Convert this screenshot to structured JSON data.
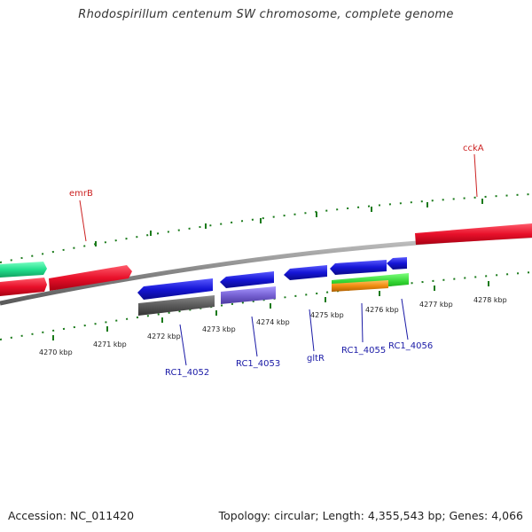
{
  "map": {
    "title": "Rhodospirillum centenum SW chromosome, complete genome",
    "accession_label": "Accession: NC_011420",
    "summary_label": "Topology: circular; Length: 4,355,543 bp; Genes: 4,066"
  },
  "scale": {
    "unit": "kbp",
    "labels": [
      "4270 kbp",
      "4271 kbp",
      "4272 kbp",
      "4273 kbp",
      "4274 kbp",
      "4275 kbp",
      "4276 kbp",
      "4277 kbp",
      "4278 kbp"
    ]
  },
  "genes": {
    "upper": [
      {
        "label": "emrB",
        "color": "#cc2222"
      },
      {
        "label": "cckA",
        "color": "#cc2222"
      }
    ],
    "lower": [
      {
        "label": "RC1_4052",
        "color": "#1a1aa6"
      },
      {
        "label": "RC1_4053",
        "color": "#1a1aa6"
      },
      {
        "label": "gltR",
        "color": "#1a1aa6"
      },
      {
        "label": "RC1_4055",
        "color": "#1a1aa6"
      },
      {
        "label": "RC1_4056",
        "color": "#1a1aa6"
      }
    ]
  },
  "colors": {
    "red_gene": "#e8102a",
    "blue_gene": "#1515d6",
    "teal_gene": "#21e08e",
    "gray_gene": "#5a5a5a",
    "purple_gene": "#7762d4",
    "green_gene": "#2ed12e",
    "orange_gene": "#f08c10",
    "backbone": "#8a8a8a",
    "tick": "#1a7a1a"
  }
}
